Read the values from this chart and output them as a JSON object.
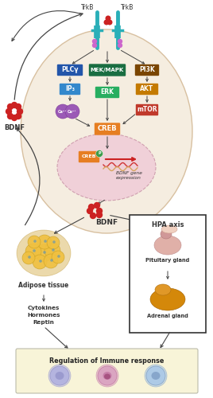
{
  "bg_color": "#ffffff",
  "cell_color": "#f5ede0",
  "cell_edge": "#d8c0a0",
  "nucleus_color": "#f0d0d8",
  "nucleus_edge": "#d0a0b0",
  "PLCy": {
    "label": "PLCγ",
    "color": "#2255aa"
  },
  "IP3": {
    "label": "IP₃",
    "color": "#3388cc"
  },
  "MEK": {
    "label": "MEK/MAPK",
    "color": "#1a6e42"
  },
  "ERK": {
    "label": "ERK",
    "color": "#27ae60"
  },
  "PI3K": {
    "label": "PI3K",
    "color": "#7a4500"
  },
  "AKT": {
    "label": "AKT",
    "color": "#c47a00"
  },
  "mTOR": {
    "label": "mTOR",
    "color": "#c0392b"
  },
  "CREB": {
    "label": "CREB",
    "color": "#e67e22"
  },
  "trkb_color": "#2aafb8",
  "phos_color": "#cc66cc",
  "bdnf_color": "#cc2222",
  "arrow_color": "#444444",
  "hpa_border": "#333333",
  "immune_bg": "#f8f4d8",
  "immune_border": "#bbbbaa",
  "ca_color": "#9b59b6",
  "adipose_color": "#f0c040",
  "adipose_edge": "#c8a020",
  "pit_color": "#d4a8a0",
  "adr_color": "#d4880a",
  "cell1_outer": "#b0b0e0",
  "cell1_inner": "#9090c8",
  "cell2_outer": "#d8a0c0",
  "cell2_inner": "#c070a0",
  "cell3_outer": "#a8c8e8",
  "cell3_inner": "#7898c0"
}
